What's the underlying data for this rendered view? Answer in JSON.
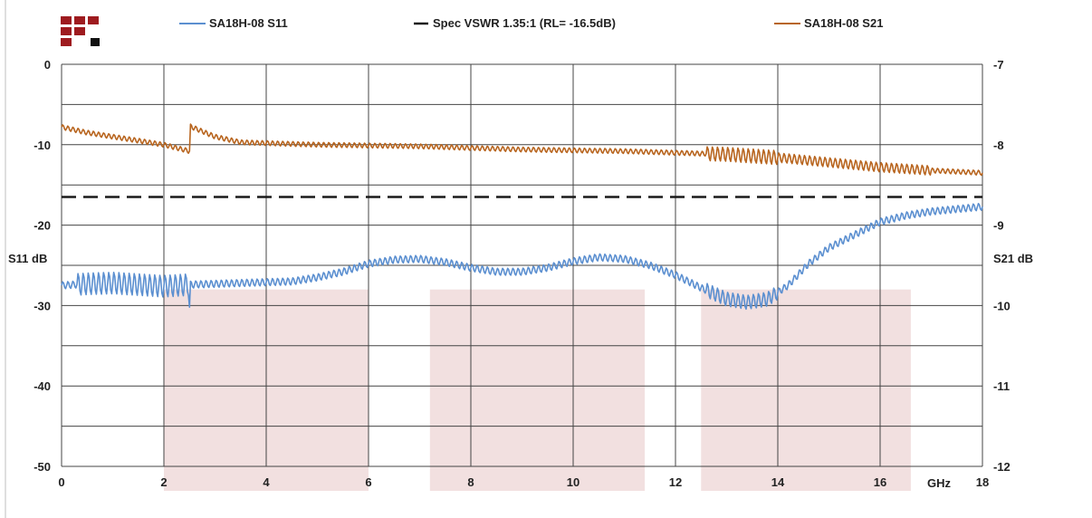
{
  "chart_data": {
    "type": "line",
    "legend_placement": "top",
    "x": {
      "label": "GHz",
      "min": 0,
      "max": 18,
      "ticks": [
        0,
        2,
        4,
        6,
        8,
        10,
        12,
        14,
        16,
        18
      ]
    },
    "y_left": {
      "label": "S11 dB",
      "min": -50,
      "max": 0,
      "ticks": [
        0,
        -10,
        -20,
        -30,
        -40,
        -50
      ],
      "minor_step": 5
    },
    "y_right": {
      "label": "S21 dB",
      "min": -12,
      "max": -7,
      "ticks": [
        -7,
        -8,
        -9,
        -10,
        -11,
        -12
      ]
    },
    "grid": true,
    "shaded_bands": [
      {
        "x": [
          2.0,
          6.0
        ],
        "y": [
          -50,
          -28
        ]
      },
      {
        "x": [
          7.2,
          11.4
        ],
        "y": [
          -50,
          -28
        ]
      },
      {
        "x": [
          12.5,
          16.6
        ],
        "y": [
          -50,
          -28
        ]
      }
    ],
    "series": [
      {
        "name": "SA18H-08 S11",
        "axis": "left",
        "color": "#5b8fd0",
        "ripple": 0.45,
        "ripple_sections": [
          {
            "x": [
              0.3,
              2.5
            ],
            "amplitude": 1.4
          },
          {
            "x": [
              12.6,
              14.0
            ],
            "amplitude": 0.9
          }
        ],
        "spike": {
          "x": 2.5,
          "y": -30.2
        },
        "points": [
          [
            0,
            -27.5
          ],
          [
            0.5,
            -27.3
          ],
          [
            1,
            -27.2
          ],
          [
            1.5,
            -27.4
          ],
          [
            2,
            -27.6
          ],
          [
            2.5,
            -27.4
          ],
          [
            3,
            -27.3
          ],
          [
            4,
            -27.1
          ],
          [
            4.5,
            -27.0
          ],
          [
            5,
            -26.5
          ],
          [
            5.5,
            -25.8
          ],
          [
            6,
            -24.8
          ],
          [
            6.5,
            -24.3
          ],
          [
            7,
            -24.2
          ],
          [
            7.5,
            -24.6
          ],
          [
            8,
            -25.3
          ],
          [
            8.5,
            -25.8
          ],
          [
            9,
            -25.8
          ],
          [
            9.5,
            -25.3
          ],
          [
            10,
            -24.5
          ],
          [
            10.5,
            -24.0
          ],
          [
            11,
            -24.2
          ],
          [
            11.5,
            -25.0
          ],
          [
            12,
            -26.2
          ],
          [
            12.5,
            -27.8
          ],
          [
            13,
            -29.2
          ],
          [
            13.4,
            -29.6
          ],
          [
            13.8,
            -29.2
          ],
          [
            14.2,
            -27.5
          ],
          [
            14.6,
            -24.8
          ],
          [
            15,
            -22.8
          ],
          [
            15.5,
            -21.2
          ],
          [
            16,
            -19.6
          ],
          [
            16.5,
            -18.8
          ],
          [
            17,
            -18.3
          ],
          [
            17.5,
            -18.0
          ],
          [
            18,
            -17.7
          ]
        ]
      },
      {
        "name": "Spec VSWR 1.35:1 (RL= -16.5dB)",
        "axis": "left",
        "color": "#1a1a1a",
        "dashed": true,
        "points": [
          [
            0,
            -16.5
          ],
          [
            18,
            -16.5
          ]
        ]
      },
      {
        "name": "SA18H-08 S21",
        "axis": "right",
        "color": "#b8651f",
        "ripple": 0.03,
        "ripple_sections": [
          {
            "x": [
              12.6,
              14.0
            ],
            "amplitude": 0.09
          },
          {
            "x": [
              14.0,
              17.0
            ],
            "amplitude": 0.06
          }
        ],
        "points": [
          [
            0,
            -7.78
          ],
          [
            0.5,
            -7.85
          ],
          [
            1,
            -7.9
          ],
          [
            1.5,
            -7.95
          ],
          [
            2,
            -8.0
          ],
          [
            2.5,
            -8.08
          ],
          [
            2.51,
            -7.77
          ],
          [
            3,
            -7.9
          ],
          [
            3.5,
            -7.97
          ],
          [
            4,
            -7.98
          ],
          [
            5,
            -8.0
          ],
          [
            6,
            -8.01
          ],
          [
            7,
            -8.02
          ],
          [
            8,
            -8.04
          ],
          [
            9,
            -8.06
          ],
          [
            10,
            -8.07
          ],
          [
            11,
            -8.08
          ],
          [
            12,
            -8.1
          ],
          [
            13,
            -8.12
          ],
          [
            14,
            -8.16
          ],
          [
            15,
            -8.22
          ],
          [
            16,
            -8.28
          ],
          [
            17,
            -8.32
          ],
          [
            18,
            -8.35
          ]
        ]
      }
    ]
  }
}
